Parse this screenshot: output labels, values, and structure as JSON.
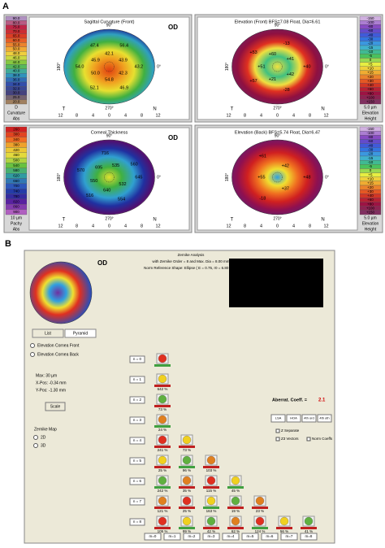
{
  "panel_a": {
    "label": "A",
    "compass": {
      "top": "90°",
      "bottom": "270°",
      "left": "180°",
      "right": "0°",
      "temporal": "T",
      "nasal": "N",
      "ticks": [
        "12",
        "8",
        "4",
        "0",
        "4",
        "8",
        "12"
      ]
    },
    "maps": [
      {
        "title": "Sagittal Curvature (Front)",
        "eye": "OD",
        "scale": [
          "90.0",
          "80.0",
          "75.0",
          "70.0",
          "65.0",
          "60.0",
          "55.0",
          "50.0",
          "48.0",
          "46.0",
          "44.0",
          "42.0",
          "40.0",
          "38.0",
          "36.0",
          "34.0",
          "32.0",
          "30.0",
          "25.0",
          "20.0"
        ],
        "scale_footer": [
          "D",
          "Curvature",
          "Abs"
        ],
        "values": [
          "43.2",
          "42.3",
          "46.9",
          "54.8",
          "52.1",
          "50.0",
          "54.0",
          "45.9",
          "47.4",
          "42.1",
          "56.4",
          "43.9"
        ]
      },
      {
        "title": "Elevation (Front)  BFS=7.08 Float, Dia=6.61",
        "scale": [
          "-150",
          "-100",
          "-80",
          "-60",
          "-40",
          "-30",
          "-20",
          "-15",
          "-10",
          "-5",
          "0",
          "+5",
          "+10",
          "+15",
          "+20",
          "+30",
          "+40",
          "+60",
          "+80",
          "+100",
          "+150"
        ],
        "scale_footer": [
          "5.0 µm",
          "Elevation",
          "Height"
        ],
        "values": [
          "+40",
          "+42",
          "-28",
          "+21",
          "+57",
          "+51",
          "+53",
          "+60",
          "-13",
          "+41"
        ]
      },
      {
        "title": "Corneal Thickness",
        "eye": "OD",
        "scale": [
          "260",
          "300",
          "340",
          "380",
          "420",
          "460",
          "500",
          "540",
          "580",
          "620",
          "660",
          "700",
          "740",
          "780",
          "820",
          "860",
          "900"
        ],
        "scale_footer": [
          "10 µm",
          "Pachy",
          "Abs"
        ],
        "values": [
          "645",
          "532",
          "554",
          "640",
          "516",
          "550",
          "570",
          "695",
          "716",
          "535",
          "560"
        ]
      },
      {
        "title": "Elevation (Back)  BFS=5.74 Float, Dia=6.47",
        "scale": [
          "-150",
          "-100",
          "-80",
          "-60",
          "-40",
          "-30",
          "-20",
          "-15",
          "-10",
          "-5",
          "0",
          "+5",
          "+10",
          "+15",
          "+20",
          "+30",
          "+40",
          "+60",
          "+80",
          "+100",
          "+150"
        ],
        "scale_footer": [
          "5.0 µm",
          "Elevation",
          "Height"
        ],
        "values": [
          "+48",
          "+37",
          "-18",
          "+55",
          "+61",
          "+42"
        ]
      }
    ]
  },
  "panel_b": {
    "label": "B",
    "eye": "OD",
    "title": "Zernike Analysis",
    "subtitle": "with Zernike Order = 8 and Max. Dia = 8.00 mm",
    "reference": "Norm Reference Shape: Ellipse ( E = 0.75, r0 = 6.80 mm )",
    "tabs": [
      "List",
      "Pyramid"
    ],
    "surface_options": [
      "Elevation Cornea Front",
      "Elevation Cornea Back"
    ],
    "max": "Max:   30 µm",
    "x_pos": "X-Pos:   -0.34 mm",
    "y_pos": "Y-Pos:   -1.30 mm",
    "scale_button": "Scale",
    "map_label": "Zernike Map",
    "map_options": [
      "2D",
      "3D"
    ],
    "coeff_label": "Aberrat. Coeff. =",
    "coeff_value": "2.1",
    "buttons": [
      "LSA",
      "HOA",
      "4th ord",
      "4th oth"
    ],
    "options": [
      "Z Separate",
      "Z3 Vectors",
      "Norm Coeffs"
    ],
    "orders": [
      "n = 0",
      "n = 1",
      "n = 2",
      "n = 3",
      "n = 4",
      "n = 5",
      "n = 6",
      "n = 7",
      "n = 8"
    ],
    "pyramid": [
      [
        null
      ],
      [
        "642 %"
      ],
      [
        "73 %"
      ],
      [
        "24 %"
      ],
      [
        "241 %",
        "73 %"
      ],
      [
        "25 %",
        "96 %",
        "103 %"
      ],
      [
        "242 %",
        "35 %",
        "115 %",
        "45 %"
      ],
      [
        "121 %",
        "25 %",
        "163 %",
        "19 %",
        "23 %"
      ],
      [
        "105 %",
        "99 %",
        "42 %",
        "62 %",
        "124 %",
        "56 %",
        "41 %"
      ]
    ],
    "m_buttons": [
      "m=0",
      "m=1",
      "m=2",
      "m=3",
      "m=4",
      "m=5",
      "m=6",
      "m=7",
      "m=8"
    ]
  }
}
